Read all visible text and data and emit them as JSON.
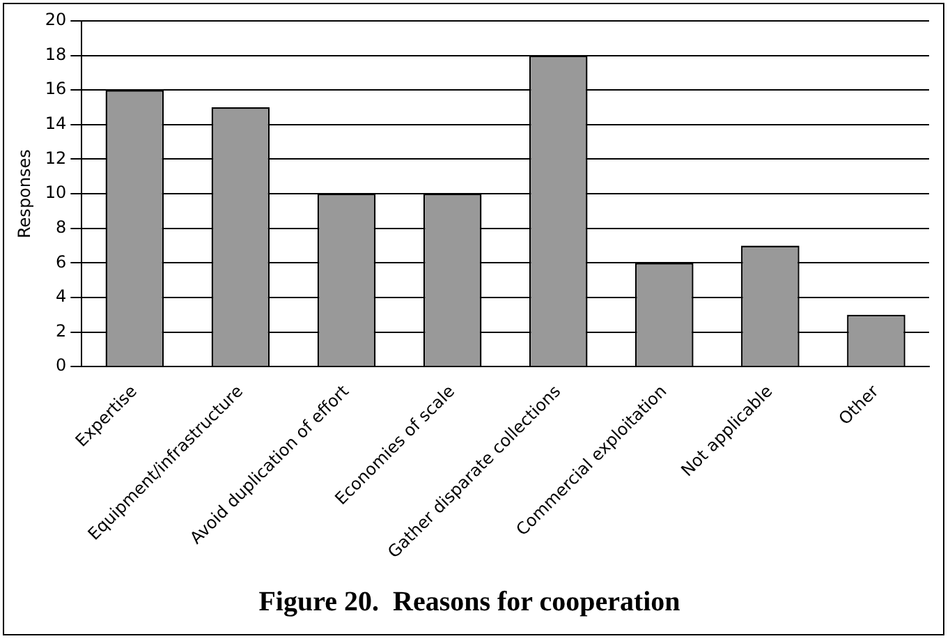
{
  "chart_data": {
    "type": "bar",
    "title": "Figure 20.  Reasons for cooperation",
    "ylabel": "Responses",
    "categories": [
      "Expertise",
      "Equipment/infrastructure",
      "Avoid duplication of effort",
      "Economies of scale",
      "Gather disparate collections",
      "Commercial exploitation",
      "Not applicable",
      "Other"
    ],
    "values": [
      16,
      15,
      10,
      10,
      18,
      6,
      7,
      3
    ],
    "color": "#999999",
    "ylim": [
      0,
      20
    ],
    "yticks": [
      0,
      2,
      4,
      6,
      8,
      10,
      12,
      14,
      16,
      18,
      20
    ],
    "grid": "y",
    "legend": false
  }
}
